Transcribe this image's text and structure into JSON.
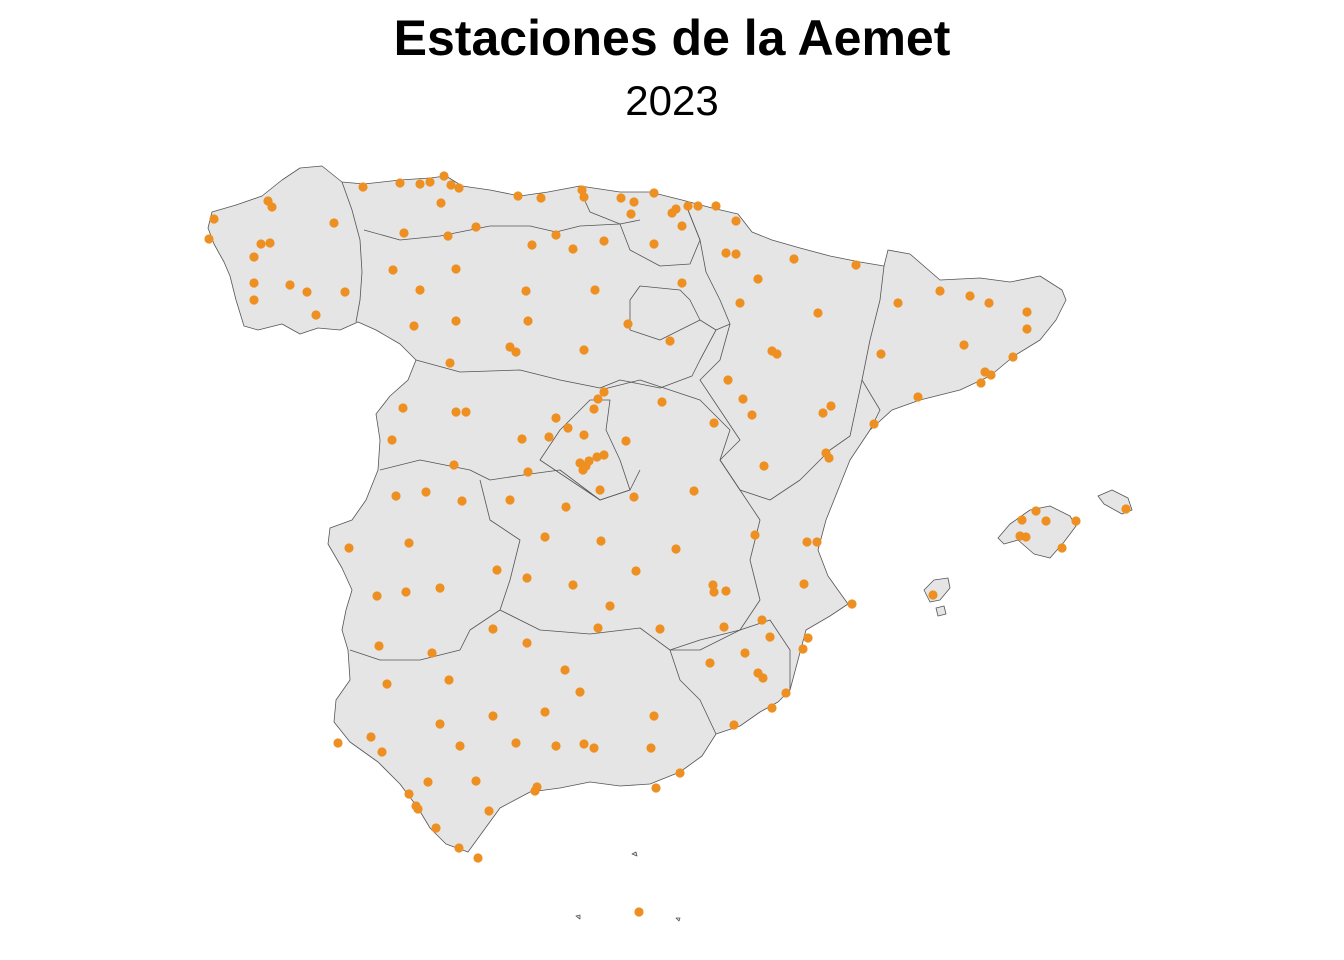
{
  "title": "Estaciones de la Aemet",
  "subtitle": "2023",
  "colors": {
    "station": "#EE8F22",
    "land": "#E5E5E5",
    "border": "#555555",
    "background": "#FFFFFF"
  },
  "chart_data": {
    "type": "scatter",
    "description_kind": "station locations",
    "point_count": 236
  }
}
